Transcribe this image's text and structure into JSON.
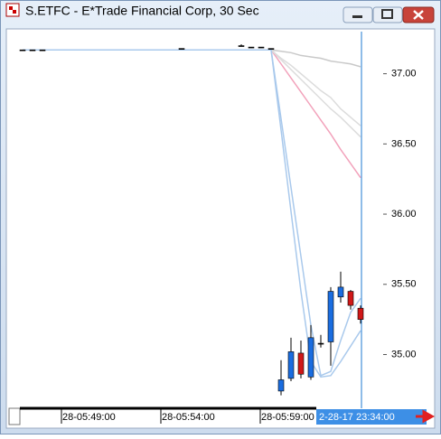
{
  "window": {
    "title": "S.ETFC - E*Trade Financial Corp, 30 Sec"
  },
  "chart_data": {
    "type": "candlestick",
    "categories": [
      null,
      null,
      null,
      null,
      "28-05:49:00",
      null,
      null,
      null,
      null,
      null,
      null,
      null,
      null,
      null,
      "28-05:54:00",
      null,
      null,
      null,
      null,
      null,
      null,
      null,
      null,
      null,
      "28-05:59:00",
      null,
      null,
      null,
      null,
      null,
      null,
      null,
      null,
      null,
      null
    ],
    "open": [
      37.17,
      37.17,
      37.17,
      null,
      null,
      null,
      null,
      null,
      null,
      null,
      null,
      null,
      null,
      null,
      null,
      null,
      37.18,
      null,
      null,
      null,
      null,
      null,
      37.2,
      37.19,
      37.19,
      37.18,
      34.74,
      34.83,
      35.01,
      34.84,
      35.08,
      35.09,
      35.41,
      35.45,
      35.33
    ],
    "high": [
      37.17,
      37.17,
      37.17,
      null,
      null,
      null,
      null,
      null,
      null,
      null,
      null,
      null,
      null,
      null,
      null,
      null,
      37.18,
      null,
      null,
      null,
      null,
      null,
      37.21,
      37.19,
      37.19,
      37.18,
      34.96,
      35.12,
      35.1,
      35.21,
      35.14,
      35.48,
      35.59,
      35.46,
      35.35
    ],
    "low": [
      37.17,
      37.17,
      37.17,
      null,
      null,
      null,
      null,
      null,
      null,
      null,
      null,
      null,
      null,
      null,
      null,
      null,
      37.18,
      null,
      null,
      null,
      null,
      null,
      37.2,
      37.19,
      37.19,
      37.18,
      34.71,
      34.81,
      34.83,
      34.82,
      35.05,
      34.92,
      35.37,
      35.32,
      35.22
    ],
    "close": [
      37.17,
      37.17,
      37.17,
      null,
      null,
      null,
      null,
      null,
      null,
      null,
      null,
      null,
      null,
      null,
      null,
      null,
      37.18,
      null,
      null,
      null,
      null,
      null,
      37.2,
      37.19,
      37.19,
      37.18,
      34.82,
      35.02,
      34.86,
      35.12,
      35.08,
      35.45,
      35.48,
      35.35,
      35.25
    ],
    "up_color": "#1a6de0",
    "down_color": "#d01818",
    "flat_color": "#000000",
    "overlays": [
      {
        "color": "#c9c9c9",
        "values": [
          37.17,
          37.17,
          37.17,
          37.17,
          37.17,
          37.17,
          37.17,
          37.17,
          37.17,
          37.17,
          37.17,
          37.17,
          37.17,
          37.17,
          37.17,
          37.17,
          37.17,
          37.17,
          37.17,
          37.17,
          37.17,
          37.17,
          37.17,
          37.17,
          37.17,
          37.17,
          37.16,
          37.15,
          37.13,
          37.12,
          37.11,
          37.09,
          37.08,
          37.07,
          37.05
        ]
      },
      {
        "color": "#f2a2bb",
        "values": [
          37.17,
          37.17,
          37.17,
          37.17,
          37.17,
          37.17,
          37.17,
          37.17,
          37.17,
          37.17,
          37.17,
          37.17,
          37.17,
          37.17,
          37.17,
          37.17,
          37.17,
          37.17,
          37.17,
          37.17,
          37.17,
          37.17,
          37.17,
          37.17,
          37.17,
          37.17,
          37.07,
          36.97,
          36.87,
          36.77,
          36.67,
          36.57,
          36.46,
          36.36,
          36.26
        ]
      },
      {
        "color": "#dcdcdc",
        "values": [
          37.17,
          37.17,
          37.17,
          37.17,
          37.17,
          37.17,
          37.17,
          37.17,
          37.17,
          37.17,
          37.17,
          37.17,
          37.17,
          37.17,
          37.17,
          37.17,
          37.17,
          37.17,
          37.17,
          37.17,
          37.17,
          37.17,
          37.17,
          37.17,
          37.17,
          37.17,
          37.11,
          37.06,
          37.0,
          36.94,
          36.88,
          36.83,
          36.75,
          36.69,
          36.63
        ]
      },
      {
        "color": "#dcdcdc",
        "values": [
          37.17,
          37.17,
          37.17,
          37.17,
          37.17,
          37.17,
          37.17,
          37.17,
          37.17,
          37.17,
          37.17,
          37.17,
          37.17,
          37.17,
          37.17,
          37.17,
          37.17,
          37.17,
          37.17,
          37.17,
          37.17,
          37.17,
          37.17,
          37.17,
          37.17,
          37.17,
          37.1,
          37.03,
          36.96,
          36.89,
          36.82,
          36.75,
          36.69,
          36.62,
          36.55
        ]
      },
      {
        "color": "#a9c9ec",
        "values": [
          37.17,
          37.17,
          37.17,
          37.17,
          37.17,
          37.17,
          37.17,
          37.17,
          37.17,
          37.17,
          37.17,
          37.17,
          37.17,
          37.17,
          37.17,
          37.17,
          37.17,
          37.17,
          37.17,
          37.17,
          37.17,
          37.17,
          37.17,
          37.17,
          37.17,
          37.17,
          36.68,
          36.19,
          35.7,
          35.21,
          34.85,
          34.88,
          35.1,
          35.3,
          35.4
        ]
      },
      {
        "color": "#a9c9ec",
        "values": [
          37.17,
          37.17,
          37.17,
          37.17,
          37.17,
          37.17,
          37.17,
          37.17,
          37.17,
          37.17,
          37.17,
          37.17,
          37.17,
          37.17,
          37.17,
          37.17,
          37.17,
          37.17,
          37.17,
          37.17,
          37.17,
          37.17,
          37.17,
          37.17,
          37.17,
          37.17,
          36.6,
          36.02,
          35.45,
          34.95,
          34.84,
          34.85,
          34.95,
          35.06,
          35.17
        ]
      }
    ],
    "ylim": [
      34.63,
      37.3
    ],
    "yticks": [
      {
        "value": 35,
        "label": "35.00"
      },
      {
        "value": 35.5,
        "label": "35.50"
      },
      {
        "value": 36,
        "label": "36.00"
      },
      {
        "value": 36.5,
        "label": "36.50"
      },
      {
        "value": 37,
        "label": "37.00"
      }
    ],
    "cursor_label": "2-28-17 23:34:00",
    "cursor_color": "#1e78d0"
  }
}
